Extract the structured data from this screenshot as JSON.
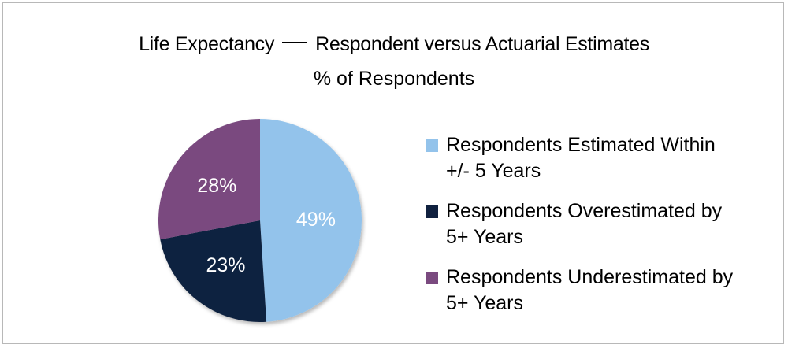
{
  "chart_data": {
    "type": "pie",
    "title_part1": "Life Expectancy",
    "title_part2": "Respondent versus Actuarial Estimates",
    "subtitle": "% of Respondents",
    "slices": [
      {
        "label": "Respondents Estimated Within +/- 5 Years",
        "label_line1": "Respondents Estimated Within",
        "label_line2": "+/- 5 Years",
        "value": 49,
        "display": "49%",
        "color": "#93c3eb",
        "label_color": "#ffffff"
      },
      {
        "label": "Respondents Overestimated by 5+ Years",
        "label_line1": "Respondents Overestimated by",
        "label_line2": "5+ Years",
        "value": 23,
        "display": "23%",
        "color": "#10213f",
        "label_color": "#ffffff"
      },
      {
        "label": "Respondents Underestimated by 5+ Years",
        "label_line1": "Respondents Underestimated by",
        "label_line2": "5+ Years",
        "value": 28,
        "display": "28%",
        "color": "#7a4a7f",
        "label_color": "#ffffff"
      }
    ],
    "legend_position": "right",
    "start_angle_deg": 0,
    "direction": "clockwise"
  }
}
